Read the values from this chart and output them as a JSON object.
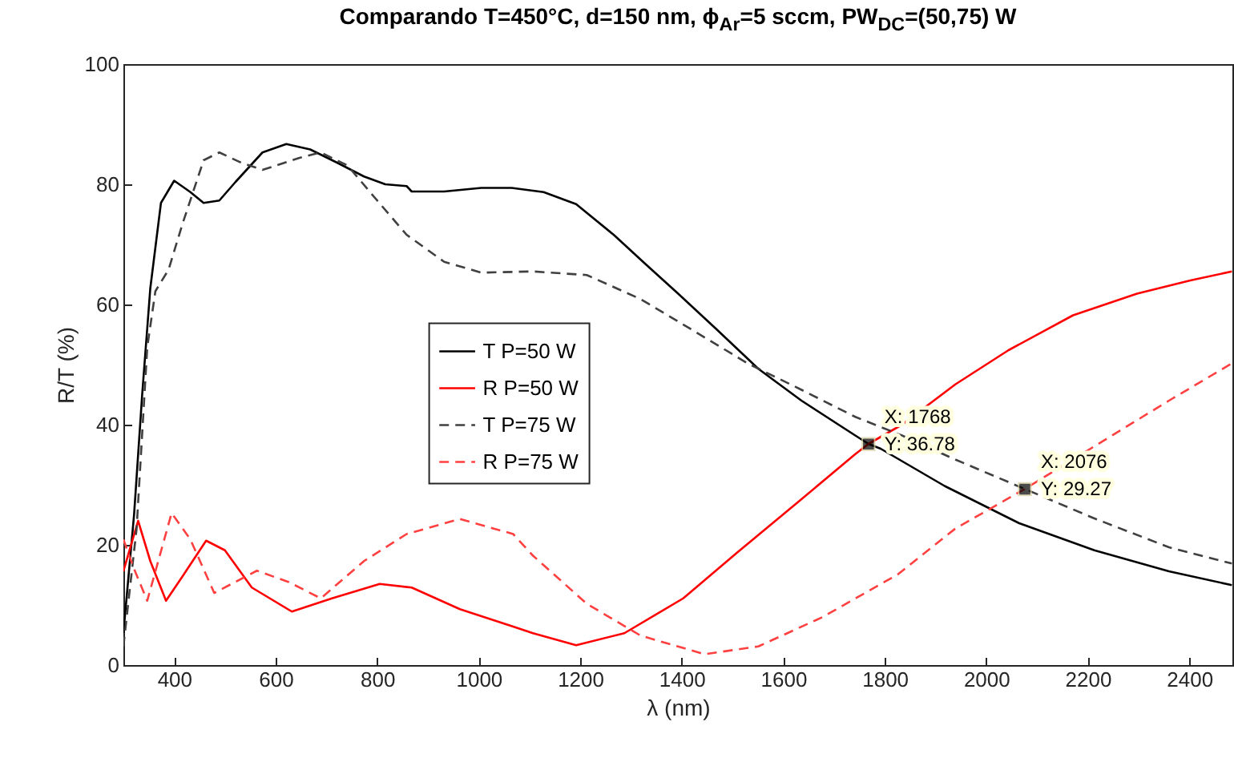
{
  "chart_data": {
    "type": "line",
    "title": "Comparando T=450°C, d=150 nm, ϕ$_{Ar}$=5 sccm, PW$_{DC}$=(50,75) W",
    "xlabel": "λ (nm)",
    "ylabel": "R/T (%)",
    "xlim": [
      300,
      2485
    ],
    "xticks": [
      400,
      600,
      800,
      1000,
      1200,
      1400,
      1600,
      1800,
      2000,
      2200,
      2400
    ],
    "ylim": [
      0,
      100
    ],
    "yticks": [
      0,
      20,
      40,
      60,
      80,
      100
    ],
    "grid": false,
    "legend": "left",
    "series": [
      {
        "name": "T P=50 W",
        "color": "#000000",
        "line_style": "solid",
        "x": [
          300,
          321,
          337,
          353,
          374,
          400,
          432,
          458,
          489,
          521,
          574,
          621,
          668,
          721,
          774,
          816,
          858,
          868,
          932,
          1005,
          1065,
          1128,
          1192,
          1266,
          1329,
          1393,
          1467,
          1551,
          1636,
          1742,
          1768,
          1792,
          1918,
          2065,
          2213,
          2360,
          2484
        ],
        "values": [
          5.3,
          25,
          45,
          62.7,
          76.9,
          80.6,
          78.7,
          76.9,
          77.3,
          80.4,
          85.3,
          86.7,
          85.8,
          83.6,
          81.3,
          80,
          79.7,
          78.8,
          78.8,
          79.4,
          79.4,
          78.7,
          76.7,
          71.6,
          66.7,
          61.8,
          56,
          49.3,
          44,
          38.2,
          36.8,
          36,
          29.8,
          23.6,
          19.1,
          15.6,
          13.3
        ]
      },
      {
        "name": "R P=50 W",
        "color": "#ff0000",
        "line_style": "solid",
        "x": [
          300,
          329,
          353,
          384,
          416,
          463,
          500,
          553,
          632,
          711,
          805,
          868,
          963,
          1068,
          1107,
          1192,
          1287,
          1403,
          1509,
          1636,
          1742,
          1768,
          1834,
          1939,
          2044,
          2171,
          2297,
          2402,
          2484
        ],
        "values": [
          15.6,
          24,
          17.3,
          10.7,
          14.7,
          20.7,
          19.1,
          12.9,
          8.9,
          11.1,
          13.5,
          12.9,
          9.3,
          6.4,
          5.3,
          3.3,
          5.3,
          11.1,
          18.7,
          27.6,
          35.1,
          36.8,
          40,
          46.7,
          52.4,
          58.2,
          61.8,
          64,
          65.5
        ]
      },
      {
        "name": "T P=75 W",
        "color": "#404040",
        "line_style": "dashed",
        "x": [
          300,
          326,
          347,
          363,
          389,
          416,
          458,
          489,
          532,
          574,
          647,
          689,
          742,
          795,
          858,
          932,
          1005,
          1107,
          1213,
          1319,
          1424,
          1530,
          1636,
          1742,
          1834,
          1939,
          2076,
          2213,
          2360,
          2484
        ],
        "values": [
          3.1,
          22.7,
          52.9,
          62.2,
          65.8,
          73.3,
          84,
          85.3,
          83.6,
          82.4,
          84.4,
          85.3,
          83.1,
          77.8,
          71.6,
          67.1,
          65.3,
          65.5,
          64.9,
          60.9,
          55.6,
          50.2,
          45.8,
          41.3,
          38.2,
          34.2,
          29.3,
          24.4,
          19.6,
          16.9
        ]
      },
      {
        "name": "R P=75 W",
        "color": "#ff4040",
        "line_style": "dashed",
        "x": [
          300,
          321,
          347,
          395,
          432,
          479,
          563,
          626,
          689,
          774,
          858,
          963,
          1068,
          1107,
          1213,
          1319,
          1445,
          1551,
          1678,
          1826,
          1939,
          2076,
          2213,
          2360,
          2484
        ],
        "values": [
          20.9,
          16,
          10.7,
          25.3,
          20.9,
          12,
          15.7,
          13.8,
          11.1,
          17.3,
          21.8,
          24.3,
          21.8,
          18.2,
          10.2,
          4.9,
          1.8,
          3.1,
          8,
          15.1,
          22.7,
          29.3,
          36.4,
          44,
          50.2
        ]
      }
    ],
    "annotations": [
      {
        "text": "X: 1768\nY: 36.78",
        "x": 1768,
        "y": 36.78
      },
      {
        "text": "X: 2076\nY: 29.27",
        "x": 2076,
        "y": 29.27
      }
    ]
  }
}
